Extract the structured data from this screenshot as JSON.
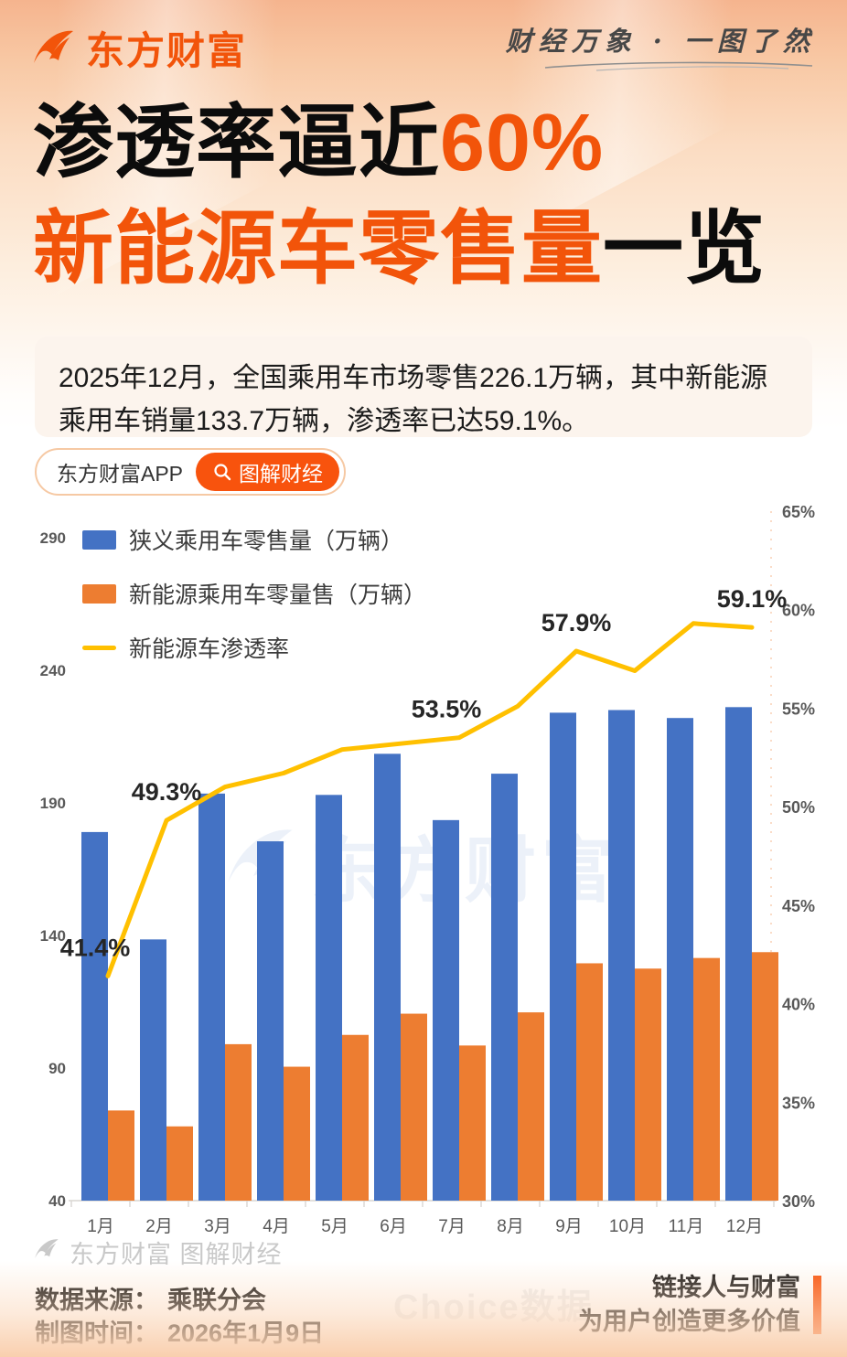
{
  "header": {
    "brand": "东方财富",
    "tagline": "财经万象 · 一图了然"
  },
  "title": {
    "line1_black": "渗透率逼近",
    "line1_orange": "60%",
    "line2_orange": "新能源车零售量",
    "line2_black": "一览"
  },
  "description": "2025年12月，全国乘用车市场零售226.1万辆，其中新能源乘用车销量133.7万辆，渗透率已达59.1%。",
  "app_banner": {
    "app_name": "东方财富APP",
    "button_label": "图解财经"
  },
  "watermarks": {
    "chart_center": "东方财富",
    "footer": "东方财富 图解财经",
    "choice": "Choice数据"
  },
  "footer": {
    "source_label": "数据来源：",
    "source_value": "乘联分会",
    "date_label": "制图时间：",
    "date_value": "2026年1月9日",
    "slogan_line1": "链接人与财富",
    "slogan_line2": "为用户创造更多价值"
  },
  "colors": {
    "brand_orange": "#f2540a",
    "bar_blue": "#4472C4",
    "bar_orange": "#ED7D31",
    "line_yellow": "#FFC000",
    "axis_text": "#595959"
  },
  "chart_data": {
    "type": "bar",
    "subtype": "grouped-bars-with-line",
    "categories": [
      "1月",
      "2月",
      "3月",
      "4月",
      "5月",
      "6月",
      "7月",
      "8月",
      "9月",
      "10月",
      "11月",
      "12月"
    ],
    "series": [
      {
        "name": "狭义乘用车零售量（万辆）",
        "type": "bar",
        "color": "#4472C4",
        "axis": "left",
        "values": [
          179,
          138.5,
          193.5,
          175.5,
          193,
          208.5,
          183.5,
          201,
          224,
          225,
          222,
          226.1
        ]
      },
      {
        "name": "新能源乘用车零量售（万辆）",
        "type": "bar",
        "color": "#ED7D31",
        "axis": "left",
        "values": [
          74,
          68,
          99,
          90.5,
          102.5,
          110.5,
          98.5,
          111,
          129.5,
          127.5,
          131.5,
          133.7
        ]
      },
      {
        "name": "新能源车渗透率",
        "type": "line",
        "color": "#FFC000",
        "axis": "right",
        "values": [
          41.4,
          49.3,
          51.0,
          51.7,
          52.9,
          53.2,
          53.5,
          55.1,
          57.9,
          56.9,
          59.3,
          59.1
        ],
        "point_labels": {
          "0": "41.4%",
          "1": "49.3%",
          "6": "53.5%",
          "8": "57.9%",
          "11": "59.1%"
        }
      }
    ],
    "left_axis": {
      "min": 40,
      "max": 290,
      "ticks": [
        290,
        240,
        190,
        140,
        90,
        40
      ]
    },
    "right_axis": {
      "min": 30,
      "max": 65,
      "ticks": [
        "65%",
        "60%",
        "55%",
        "50%",
        "45%",
        "40%",
        "35%",
        "30%"
      ]
    },
    "legend_position": "top-left",
    "grid": false
  }
}
